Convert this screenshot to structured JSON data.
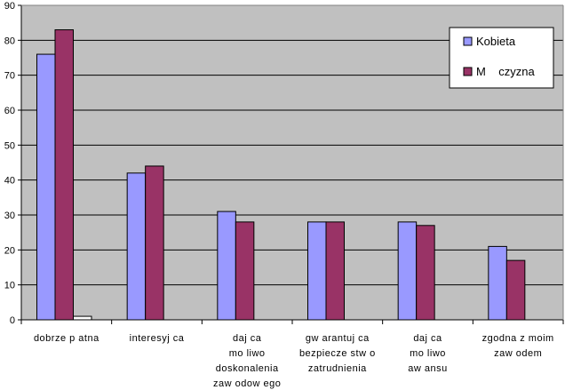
{
  "chart_data": {
    "type": "bar",
    "title": "",
    "xlabel": "",
    "ylabel": "",
    "ylim": [
      0,
      90
    ],
    "yticks": [
      0,
      10,
      20,
      30,
      40,
      50,
      60,
      70,
      80,
      90
    ],
    "grid": true,
    "legend_position": "top-right",
    "categories": [
      [
        "dobrze p atna"
      ],
      [
        "interesyj ca"
      ],
      [
        "daj ca",
        "mo liwo",
        "doskonalenia",
        "zaw odow ego"
      ],
      [
        "gw arantuj ca",
        "bezpiecze stw o",
        "zatrudnienia"
      ],
      [
        "daj ca",
        "mo liwo",
        "aw ansu"
      ],
      [
        "zgodna z moim",
        "zaw odem"
      ]
    ],
    "series": [
      {
        "name": "Kobieta",
        "color": "#9999ff",
        "values": [
          76,
          42,
          31,
          28,
          28,
          21
        ]
      },
      {
        "name": "M    czyzna",
        "color": "#993366",
        "values": [
          83,
          44,
          28,
          28,
          27,
          17
        ]
      },
      {
        "name": "",
        "color": "#ffffff",
        "values": [
          1,
          0,
          0,
          0,
          0,
          0
        ]
      }
    ],
    "plot_background": "#c0c0c0"
  }
}
